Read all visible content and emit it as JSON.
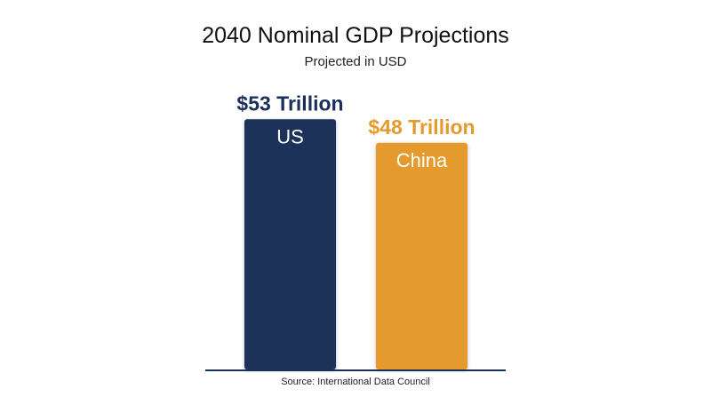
{
  "chart_data": {
    "type": "bar",
    "title": "2040 Nominal GDP Projections",
    "subtitle": "Projected in USD",
    "categories": [
      "US",
      "China"
    ],
    "values": [
      53,
      48
    ],
    "value_labels": [
      "$53 Trillion",
      "$48 Trillion"
    ],
    "colors": [
      "#1a3058",
      "#e59a2d"
    ],
    "ylim": [
      0,
      57
    ],
    "grid": false,
    "source": "Source: International Data Council"
  }
}
